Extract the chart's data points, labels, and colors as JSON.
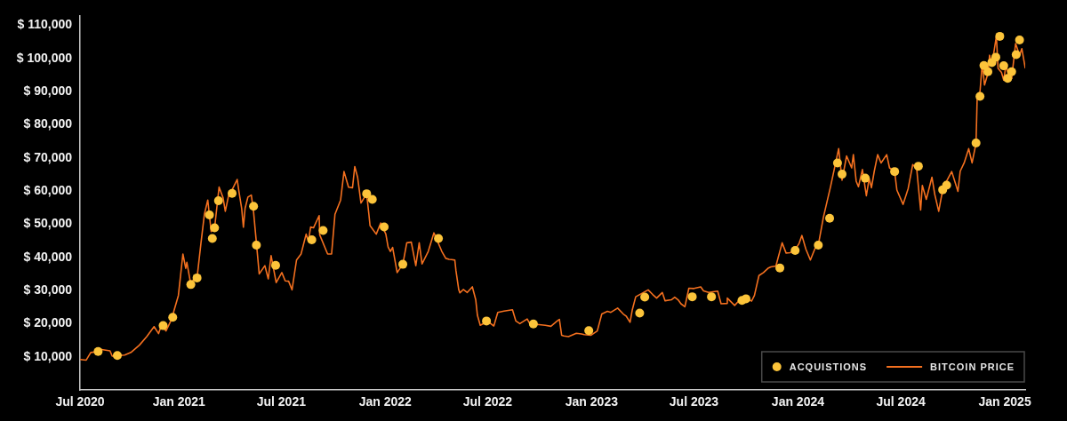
{
  "chart_data": {
    "type": "line",
    "legend": "bottom right",
    "grid": false,
    "xlim": [
      "2020-07-10",
      "2025-02-06"
    ],
    "xticks": [
      {
        "value": "2020-07-10",
        "label": "Jul 2020"
      },
      {
        "value": "2021-01",
        "label": "Jan 2021"
      },
      {
        "value": "2021-07",
        "label": "Jul 2021"
      },
      {
        "value": "2022-01",
        "label": "Jan 2022"
      },
      {
        "value": "2022-07",
        "label": "Jul 2022"
      },
      {
        "value": "2023-01",
        "label": "Jan 2023"
      },
      {
        "value": "2023-07",
        "label": "Jul 2023"
      },
      {
        "value": "2024-01",
        "label": "Jan 2024"
      },
      {
        "value": "2024-07",
        "label": "Jul 2024"
      },
      {
        "value": "2025-01",
        "label": "Jan 2025"
      }
    ],
    "ylim": [
      0,
      113000
    ],
    "yticks": [
      {
        "value": 10000,
        "label": "$ 10,000"
      },
      {
        "value": 20000,
        "label": "$ 20,000"
      },
      {
        "value": 30000,
        "label": "$ 30,000"
      },
      {
        "value": 40000,
        "label": "$ 40,000"
      },
      {
        "value": 50000,
        "label": "$ 50,000"
      },
      {
        "value": 60000,
        "label": "$ 60,000"
      },
      {
        "value": 70000,
        "label": "$ 70,000"
      },
      {
        "value": 80000,
        "label": "$ 80,000"
      },
      {
        "value": 90000,
        "label": "$ 90,000"
      },
      {
        "value": 100000,
        "label": "$ 100,000"
      },
      {
        "value": 110000,
        "label": "$ 110,000"
      }
    ],
    "series": [
      {
        "name": "ACQUISTIONS",
        "type": "scatter",
        "marker": "circle",
        "color": "#fcc43a",
        "x": [
          "2020-08-11",
          "2020-09-14",
          "2020-12-04",
          "2020-12-21",
          "2021-01-22",
          "2021-02-02",
          "2021-02-24",
          "2021-03-01",
          "2021-03-05",
          "2021-03-12",
          "2021-04-05",
          "2021-05-13",
          "2021-05-18",
          "2021-06-21",
          "2021-08-24",
          "2021-09-13",
          "2021-11-29",
          "2021-12-09",
          "2021-12-30",
          "2022-02-01",
          "2022-04-05",
          "2022-06-29",
          "2022-09-20",
          "2022-12-27",
          "2023-03-27",
          "2023-04-05",
          "2023-06-28",
          "2023-08-01",
          "2023-09-24",
          "2023-10-01",
          "2023-11-30",
          "2023-12-27",
          "2024-02-06",
          "2024-02-26",
          "2024-03-11",
          "2024-03-19",
          "2024-04-29",
          "2024-06-20",
          "2024-08-01",
          "2024-09-13",
          "2024-09-20",
          "2024-11-11",
          "2024-11-18",
          "2024-11-25",
          "2024-12-02",
          "2024-12-09",
          "2024-12-16",
          "2024-12-23",
          "2024-12-30",
          "2025-01-06",
          "2025-01-13",
          "2025-01-21",
          "2025-01-27"
        ],
        "values": [
          11600,
          10400,
          19400,
          21900,
          31800,
          33800,
          52800,
          45700,
          48900,
          57100,
          59300,
          55400,
          43700,
          37600,
          45300,
          48100,
          59200,
          57500,
          49200,
          37900,
          45700,
          20800,
          19900,
          17900,
          23200,
          28000,
          28100,
          28100,
          27000,
          27500,
          36800,
          42100,
          43700,
          51800,
          68500,
          65100,
          63900,
          65900,
          67500,
          60400,
          61800,
          74500,
          88600,
          97900,
          96000,
          98800,
          100400,
          106700,
          97800,
          94000,
          96000,
          101200,
          105600
        ]
      },
      {
        "name": "BITCOIN PRICE",
        "type": "line",
        "marker": "none",
        "line_style": "solid",
        "color": "#f4701f",
        "x": [
          "2020-07-10",
          "2020-07-21",
          "2020-07-29",
          "2020-08-11",
          "2020-08-17",
          "2020-09-01",
          "2020-09-05",
          "2020-09-27",
          "2020-10-08",
          "2020-10-23",
          "2020-11-05",
          "2020-11-18",
          "2020-11-26",
          "2020-12-01",
          "2020-12-09",
          "2020-12-21",
          "2020-12-23",
          "2020-12-31",
          "2021-01-08",
          "2021-01-13",
          "2021-01-15",
          "2021-01-22",
          "2021-01-29",
          "2021-02-02",
          "2021-02-09",
          "2021-02-15",
          "2021-02-21",
          "2021-02-27",
          "2021-03-05",
          "2021-03-13",
          "2021-03-20",
          "2021-03-24",
          "2021-03-30",
          "2021-04-01",
          "2021-04-14",
          "2021-04-17",
          "2021-04-22",
          "2021-04-25",
          "2021-04-28",
          "2021-05-03",
          "2021-05-09",
          "2021-05-13",
          "2021-05-18",
          "2021-05-23",
          "2021-06-02",
          "2021-06-08",
          "2021-06-13",
          "2021-06-22",
          "2021-07-02",
          "2021-07-08",
          "2021-07-14",
          "2021-07-20",
          "2021-07-28",
          "2021-08-05",
          "2021-08-14",
          "2021-08-18",
          "2021-08-22",
          "2021-08-27",
          "2021-09-06",
          "2021-09-07",
          "2021-09-21",
          "2021-09-28",
          "2021-10-04",
          "2021-10-14",
          "2021-10-20",
          "2021-10-28",
          "2021-11-04",
          "2021-11-08",
          "2021-11-13",
          "2021-11-19",
          "2021-11-29",
          "2021-12-03",
          "2021-12-05",
          "2021-12-16",
          "2021-12-24",
          "2022-01-02",
          "2022-01-06",
          "2022-01-10",
          "2022-01-14",
          "2022-01-22",
          "2022-02-01",
          "2022-02-08",
          "2022-02-16",
          "2022-02-24",
          "2022-03-02",
          "2022-03-07",
          "2022-03-18",
          "2022-03-28",
          "2022-04-01",
          "2022-04-11",
          "2022-04-18",
          "2022-04-24",
          "2022-05-04",
          "2022-05-06",
          "2022-05-11",
          "2022-05-13",
          "2022-05-19",
          "2022-05-26",
          "2022-06-04",
          "2022-06-10",
          "2022-06-13",
          "2022-06-18",
          "2022-06-29",
          "2022-07-05",
          "2022-07-12",
          "2022-07-19",
          "2022-07-30",
          "2022-08-14",
          "2022-08-20",
          "2022-08-27",
          "2022-09-09",
          "2022-09-13",
          "2022-09-19",
          "2022-10-11",
          "2022-10-21",
          "2022-11-01",
          "2022-11-05",
          "2022-11-09",
          "2022-11-13",
          "2022-11-21",
          "2022-12-05",
          "2022-12-14",
          "2022-12-19",
          "2022-12-31",
          "2023-01-11",
          "2023-01-19",
          "2023-01-29",
          "2023-02-04",
          "2023-02-16",
          "2023-02-26",
          "2023-03-03",
          "2023-03-10",
          "2023-03-14",
          "2023-03-20",
          "2023-04-11",
          "2023-04-19",
          "2023-04-26",
          "2023-05-06",
          "2023-05-11",
          "2023-05-22",
          "2023-05-28",
          "2023-06-03",
          "2023-06-08",
          "2023-06-15",
          "2023-06-22",
          "2023-07-01",
          "2023-07-13",
          "2023-07-18",
          "2023-07-27",
          "2023-08-12",
          "2023-08-18",
          "2023-08-28",
          "2023-08-29",
          "2023-09-11",
          "2023-09-18",
          "2023-09-28",
          "2023-10-01",
          "2023-10-11",
          "2023-10-16",
          "2023-10-24",
          "2023-11-01",
          "2023-11-09",
          "2023-11-14",
          "2023-11-23",
          "2023-12-04",
          "2023-12-11",
          "2023-12-18",
          "2023-12-28",
          "2024-01-03",
          "2024-01-08",
          "2024-01-15",
          "2024-01-23",
          "2024-01-31",
          "2024-02-06",
          "2024-02-15",
          "2024-02-28",
          "2024-03-13",
          "2024-03-19",
          "2024-03-27",
          "2024-04-05",
          "2024-04-08",
          "2024-04-13",
          "2024-04-17",
          "2024-04-24",
          "2024-05-01",
          "2024-05-06",
          "2024-05-10",
          "2024-05-15",
          "2024-05-21",
          "2024-05-27",
          "2024-06-06",
          "2024-06-11",
          "2024-06-20",
          "2024-06-24",
          "2024-07-05",
          "2024-07-14",
          "2024-07-22",
          "2024-07-29",
          "2024-08-05",
          "2024-08-08",
          "2024-08-15",
          "2024-08-25",
          "2024-08-30",
          "2024-09-06",
          "2024-09-13",
          "2024-09-20",
          "2024-09-29",
          "2024-10-10",
          "2024-10-14",
          "2024-10-21",
          "2024-10-29",
          "2024-11-04",
          "2024-11-11",
          "2024-11-13",
          "2024-11-18",
          "2024-11-22",
          "2024-11-26",
          "2024-12-02",
          "2024-12-05",
          "2024-12-09",
          "2024-12-17",
          "2024-12-20",
          "2024-12-26",
          "2024-12-30",
          "2025-01-03",
          "2025-01-08",
          "2025-01-13",
          "2025-01-20",
          "2025-01-27",
          "2025-01-31",
          "2025-02-06"
        ],
        "values": [
          9200,
          9000,
          11300,
          11600,
          12200,
          11800,
          10200,
          10500,
          11300,
          13500,
          16100,
          19100,
          17000,
          19500,
          17800,
          22000,
          23800,
          28500,
          41000,
          36700,
          38500,
          31800,
          34000,
          33800,
          44400,
          53000,
          57300,
          47800,
          48800,
          61200,
          58000,
          53900,
          58800,
          59000,
          63500,
          60000,
          54700,
          49100,
          54800,
          58200,
          58800,
          53700,
          44400,
          35000,
          37500,
          33500,
          40500,
          32400,
          35400,
          32900,
          32800,
          30200,
          39200,
          41000,
          47000,
          44800,
          49200,
          48900,
          52600,
          46800,
          41000,
          41000,
          53000,
          57300,
          65900,
          61200,
          61000,
          67400,
          64200,
          56400,
          59200,
          53000,
          49600,
          47000,
          50400,
          47000,
          43100,
          41800,
          43000,
          35400,
          37900,
          44400,
          44600,
          37500,
          44400,
          38000,
          41800,
          47400,
          45800,
          41800,
          39700,
          39400,
          39200,
          36000,
          30200,
          29300,
          30300,
          29400,
          31100,
          27200,
          22500,
          19500,
          20500,
          20200,
          19300,
          23400,
          23800,
          24200,
          20800,
          20000,
          21400,
          20200,
          19900,
          19500,
          19200,
          20800,
          21300,
          16500,
          16300,
          16100,
          17100,
          16900,
          16700,
          16500,
          17800,
          22900,
          23700,
          23400,
          24700,
          22900,
          22300,
          20400,
          24200,
          28100,
          30200,
          28800,
          27700,
          29400,
          26900,
          27200,
          28000,
          27200,
          26000,
          25100,
          30700,
          30600,
          31100,
          29900,
          29400,
          29800,
          26000,
          26100,
          27700,
          25500,
          26800,
          27000,
          27700,
          26800,
          28500,
          34500,
          35400,
          36700,
          37100,
          37400,
          44400,
          41300,
          41400,
          42600,
          44200,
          46600,
          42500,
          39200,
          42600,
          43700,
          52100,
          61600,
          72800,
          63300,
          70600,
          67000,
          71000,
          63000,
          61300,
          66500,
          58600,
          63800,
          61000,
          66000,
          71000,
          68500,
          71000,
          67000,
          65900,
          60300,
          56000,
          60800,
          68000,
          66800,
          54300,
          61700,
          57500,
          64200,
          59000,
          53900,
          60400,
          63000,
          65900,
          59900,
          66000,
          68500,
          72800,
          68500,
          74400,
          88000,
          90000,
          98500,
          92000,
          95500,
          101000,
          98000,
          106700,
          97000,
          95800,
          93500,
          98000,
          94500,
          94000,
          104500,
          101000,
          103000,
          97200
        ]
      }
    ]
  }
}
